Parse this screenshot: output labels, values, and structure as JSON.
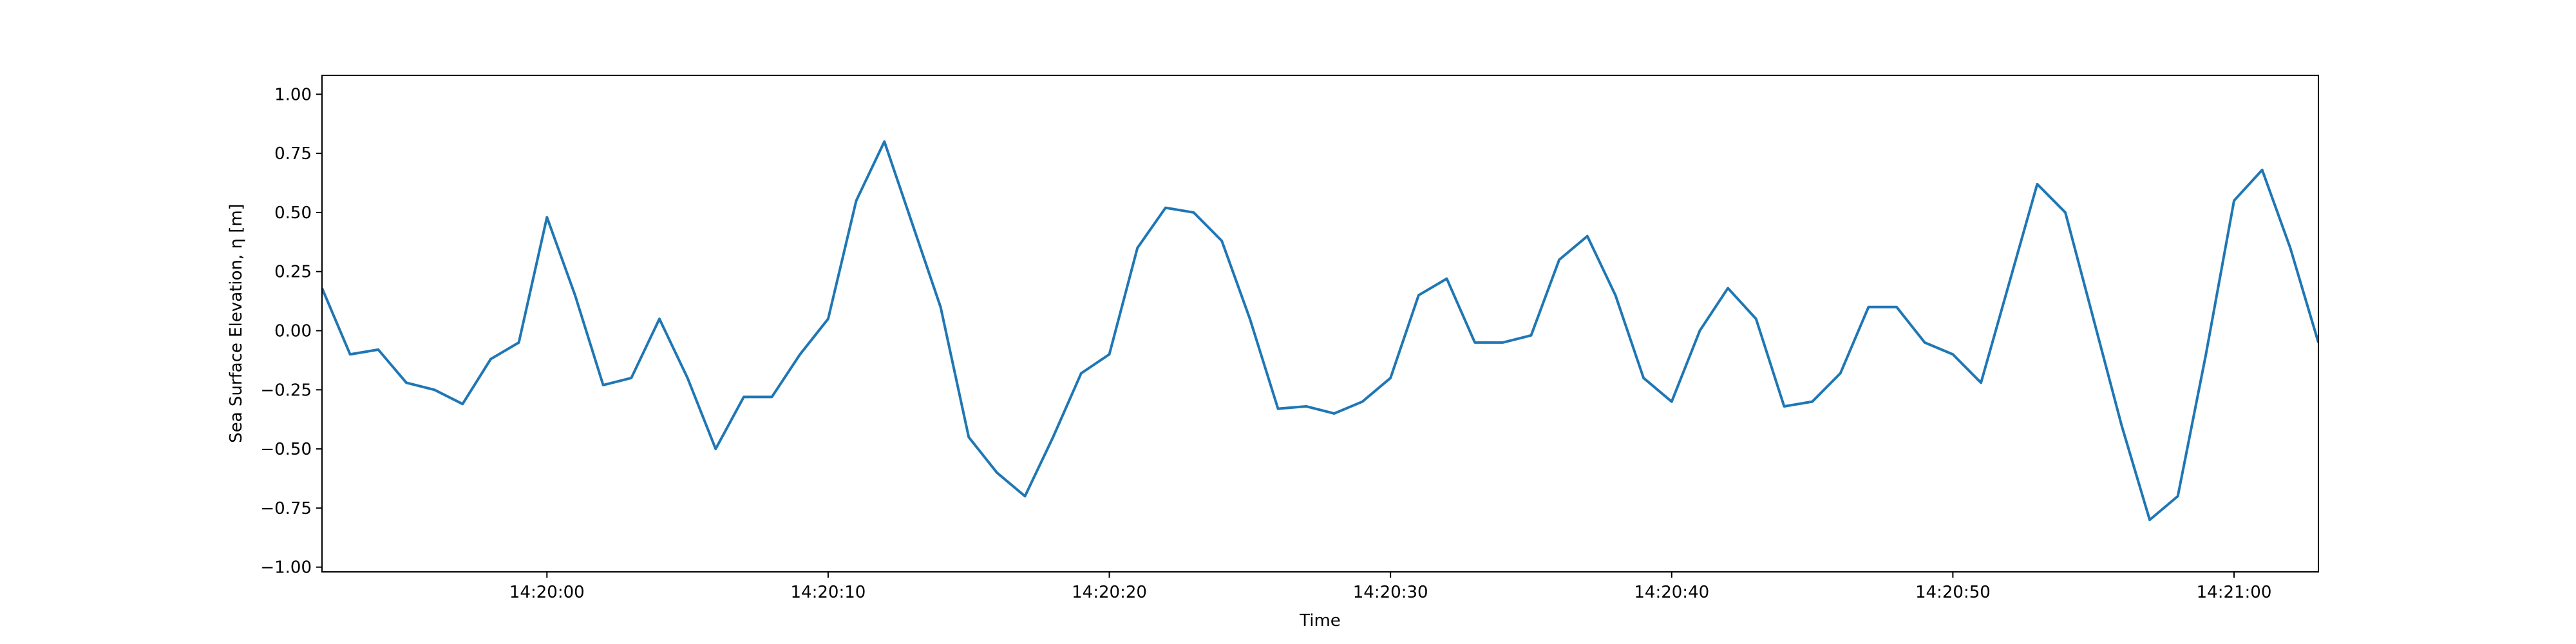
{
  "chart_data": {
    "type": "line",
    "x_label": "Time",
    "y_label": "Sea Surface Elevation, η [m]",
    "x": [
      "14:19:52",
      "14:19:53",
      "14:19:54",
      "14:19:55",
      "14:19:56",
      "14:19:57",
      "14:19:58",
      "14:19:59",
      "14:20:00",
      "14:20:01",
      "14:20:02",
      "14:20:03",
      "14:20:04",
      "14:20:05",
      "14:20:06",
      "14:20:07",
      "14:20:08",
      "14:20:09",
      "14:20:10",
      "14:20:11",
      "14:20:12",
      "14:20:13",
      "14:20:14",
      "14:20:15",
      "14:20:16",
      "14:20:17",
      "14:20:18",
      "14:20:19",
      "14:20:20",
      "14:20:21",
      "14:20:22",
      "14:20:23",
      "14:20:24",
      "14:20:25",
      "14:20:26",
      "14:20:27",
      "14:20:28",
      "14:20:29",
      "14:20:30",
      "14:20:31",
      "14:20:32",
      "14:20:33",
      "14:20:34",
      "14:20:35",
      "14:20:36",
      "14:20:37",
      "14:20:38",
      "14:20:39",
      "14:20:40",
      "14:20:41",
      "14:20:42",
      "14:20:43",
      "14:20:44",
      "14:20:45",
      "14:20:46",
      "14:20:47",
      "14:20:48",
      "14:20:49",
      "14:20:50",
      "14:20:51",
      "14:20:52",
      "14:20:53",
      "14:20:54",
      "14:20:55",
      "14:20:56",
      "14:20:57",
      "14:20:58",
      "14:20:59",
      "14:21:00",
      "14:21:01",
      "14:21:02",
      "14:21:03"
    ],
    "series": [
      {
        "color": "#1f77b4",
        "values": [
          0.18,
          -0.1,
          -0.08,
          -0.22,
          -0.25,
          -0.31,
          -0.12,
          -0.05,
          0.48,
          0.15,
          -0.23,
          -0.2,
          0.05,
          -0.2,
          -0.5,
          -0.28,
          -0.28,
          -0.1,
          0.05,
          0.55,
          0.8,
          0.45,
          0.1,
          -0.45,
          -0.6,
          -0.7,
          -0.45,
          -0.18,
          -0.1,
          0.35,
          0.52,
          0.5,
          0.38,
          0.05,
          -0.33,
          -0.32,
          -0.35,
          -0.3,
          -0.2,
          0.15,
          0.22,
          -0.05,
          -0.05,
          -0.02,
          0.3,
          0.4,
          0.15,
          -0.2,
          -0.3,
          0.0,
          0.18,
          0.05,
          -0.32,
          -0.3,
          -0.18,
          0.1,
          0.1,
          -0.05,
          -0.1,
          -0.22,
          0.2,
          0.62,
          0.5,
          0.05,
          -0.4,
          -0.8,
          -0.7,
          -0.1,
          0.55,
          0.68,
          0.35,
          -0.05
        ]
      }
    ],
    "xlim": [
      "14:19:52",
      "14:21:03"
    ],
    "xticks": [
      "14:20:00",
      "14:20:10",
      "14:20:20",
      "14:20:30",
      "14:20:40",
      "14:20:50",
      "14:21:00"
    ],
    "ylim": [
      -1.02,
      1.08
    ],
    "yticks": [
      {
        "value": -1,
        "label": "−1.00"
      },
      {
        "value": -0.75,
        "label": "−0.75"
      },
      {
        "value": -0.5,
        "label": "−0.50"
      },
      {
        "value": -0.25,
        "label": "−0.25"
      },
      {
        "value": 0,
        "label": "0.00"
      },
      {
        "value": 0.25,
        "label": "0.25"
      },
      {
        "value": 0.5,
        "label": "0.50"
      },
      {
        "value": 0.75,
        "label": "0.75"
      },
      {
        "value": 1,
        "label": "1.00"
      }
    ]
  }
}
